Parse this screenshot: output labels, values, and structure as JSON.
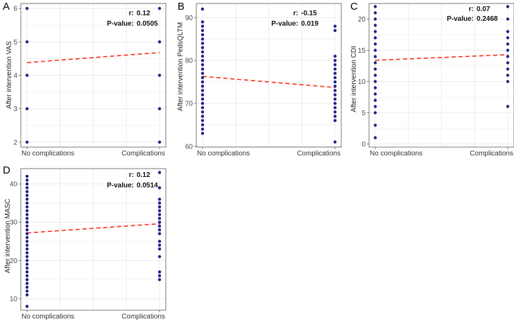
{
  "figure": {
    "panels": [
      "A",
      "B",
      "C",
      "D"
    ]
  },
  "colors": {
    "points": "#1f1f8f",
    "trend": "#ff2a1a",
    "grid": "#ececec",
    "frame": "#5a5a5a"
  },
  "chart_data": [
    {
      "panel": "A",
      "type": "scatter",
      "xlabel": "",
      "ylabel": "After intervention VAS",
      "categories": [
        "No complications",
        "Complications"
      ],
      "ylim": [
        1.85,
        6.15
      ],
      "yticks": [
        2,
        3,
        4,
        5,
        6
      ],
      "r_label": "r:",
      "r_value": "0.12",
      "p_label": "P-value:",
      "p_value": "0.0505",
      "series": [
        {
          "name": "No complications",
          "values": [
            2,
            3,
            4,
            5,
            6
          ]
        },
        {
          "name": "Complications",
          "values": [
            2,
            3,
            4,
            5,
            6
          ]
        }
      ],
      "trend": {
        "start": 4.38,
        "end": 4.68
      }
    },
    {
      "panel": "B",
      "type": "scatter",
      "xlabel": "",
      "ylabel": "After intervention PedsQLTM",
      "categories": [
        "No complications",
        "Complications"
      ],
      "ylim": [
        59.8,
        93.3
      ],
      "yticks": [
        60,
        70,
        80,
        90
      ],
      "r_label": "r:",
      "r_value": "-0.15",
      "p_label": "P-value:",
      "p_value": "0.019",
      "series": [
        {
          "name": "No complications",
          "values": [
            63,
            64,
            65,
            66,
            67,
            68,
            69,
            70,
            71,
            72,
            73,
            74,
            75,
            76,
            77,
            78,
            79,
            80,
            81,
            82,
            83,
            84,
            85,
            86,
            87,
            88,
            89,
            92
          ]
        },
        {
          "name": "Complications",
          "values": [
            61,
            66,
            67,
            68,
            69,
            70,
            71,
            72,
            73,
            74,
            75,
            76,
            77,
            78,
            79,
            80,
            81,
            87,
            88
          ]
        }
      ],
      "trend": {
        "start": 76.3,
        "end": 73.7
      }
    },
    {
      "panel": "C",
      "type": "scatter",
      "xlabel": "",
      "ylabel": "After intervention CDI",
      "categories": [
        "No complications",
        "Complications"
      ],
      "ylim": [
        -0.5,
        22.5
      ],
      "yticks": [
        0,
        5,
        10,
        15,
        20
      ],
      "r_label": "r:",
      "r_value": "0.07",
      "p_label": "P-value:",
      "p_value": "0.2468",
      "series": [
        {
          "name": "No complications",
          "values": [
            1,
            3,
            5,
            6,
            7,
            8,
            9,
            10,
            11,
            12,
            13,
            14,
            15,
            16,
            17,
            18,
            19,
            20,
            21,
            22
          ]
        },
        {
          "name": "Complications",
          "values": [
            6,
            10,
            11,
            12,
            13,
            14,
            15,
            16,
            17,
            18,
            20,
            22
          ]
        }
      ],
      "trend": {
        "start": 13.4,
        "end": 14.3
      }
    },
    {
      "panel": "D",
      "type": "scatter",
      "xlabel": "",
      "ylabel": "After intervention MASC",
      "categories": [
        "No complications",
        "Complications"
      ],
      "ylim": [
        7,
        44
      ],
      "yticks": [
        10,
        20,
        30,
        40
      ],
      "r_label": "r:",
      "r_value": "0.12",
      "p_label": "P-value:",
      "p_value": "0.0514",
      "series": [
        {
          "name": "No complications",
          "values": [
            8,
            11,
            12,
            13,
            14,
            15,
            16,
            17,
            18,
            19,
            20,
            21,
            22,
            23,
            24,
            25,
            26,
            27,
            28,
            29,
            30,
            31,
            32,
            33,
            34,
            35,
            36,
            37,
            38,
            39,
            40,
            41,
            42
          ]
        },
        {
          "name": "Complications",
          "values": [
            15,
            16,
            17,
            21,
            23,
            24,
            25,
            27,
            28,
            29,
            30,
            31,
            32,
            33,
            34,
            35,
            36,
            39,
            43
          ]
        }
      ],
      "trend": {
        "start": 27.2,
        "end": 29.6
      }
    }
  ]
}
